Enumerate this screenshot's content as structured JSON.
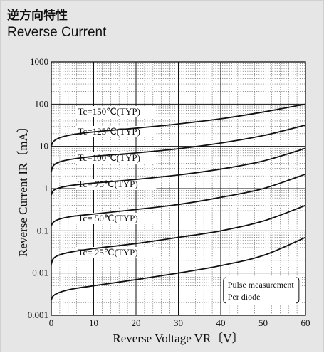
{
  "header": {
    "title_jp": "逆方向特性",
    "title_en": "Reverse Current"
  },
  "chart_data": {
    "type": "line",
    "title": "Reverse Current",
    "xlabel": "Reverse Voltage  VR〔V〕",
    "ylabel": "Reverse Current  IR〔mA〕",
    "x_scale": "linear",
    "y_scale": "log",
    "xlim": [
      0,
      60
    ],
    "ylim": [
      0.001,
      1000
    ],
    "grid": true,
    "x_ticks": [
      "0",
      "10",
      "20",
      "30",
      "40",
      "50",
      "60"
    ],
    "y_ticks": [
      "0.001",
      "0.01",
      "0.1",
      "1",
      "10",
      "100",
      "1000"
    ],
    "series": [
      {
        "name": "Tc=150℃(TYP)",
        "x": [
          0,
          0.5,
          2,
          5,
          10,
          20,
          30,
          40,
          50,
          60
        ],
        "y": [
          10,
          13,
          16,
          19,
          22,
          27,
          34,
          45,
          65,
          100
        ]
      },
      {
        "name": "Tc=125℃(TYP)",
        "x": [
          0,
          0.5,
          2,
          5,
          10,
          20,
          30,
          40,
          50,
          60
        ],
        "y": [
          2.5,
          3.5,
          4.3,
          5,
          5.8,
          7,
          8.8,
          12,
          18,
          32
        ]
      },
      {
        "name": "Tc=100℃(TYP)",
        "x": [
          0,
          0.5,
          2,
          5,
          10,
          20,
          30,
          40,
          50,
          60
        ],
        "y": [
          0.7,
          0.9,
          1.05,
          1.2,
          1.35,
          1.65,
          2.1,
          2.9,
          4.5,
          9
        ]
      },
      {
        "name": "Tc= 75℃(TYP)",
        "x": [
          0,
          0.5,
          2,
          5,
          10,
          20,
          30,
          40,
          50,
          60
        ],
        "y": [
          0.13,
          0.16,
          0.19,
          0.22,
          0.25,
          0.32,
          0.42,
          0.62,
          1.0,
          2.2
        ]
      },
      {
        "name": "Tc= 50℃(TYP)",
        "x": [
          0,
          0.5,
          2,
          5,
          10,
          20,
          30,
          40,
          50,
          60
        ],
        "y": [
          0.016,
          0.022,
          0.027,
          0.032,
          0.038,
          0.05,
          0.07,
          0.1,
          0.17,
          0.4
        ]
      },
      {
        "name": "Tc= 25℃(TYP)",
        "x": [
          0,
          0.5,
          2,
          5,
          10,
          20,
          30,
          40,
          50,
          60
        ],
        "y": [
          0.0023,
          0.0029,
          0.0035,
          0.0042,
          0.005,
          0.007,
          0.01,
          0.015,
          0.026,
          0.07
        ]
      }
    ],
    "annotation": [
      "Pulse measurement",
      "Per diode"
    ]
  }
}
